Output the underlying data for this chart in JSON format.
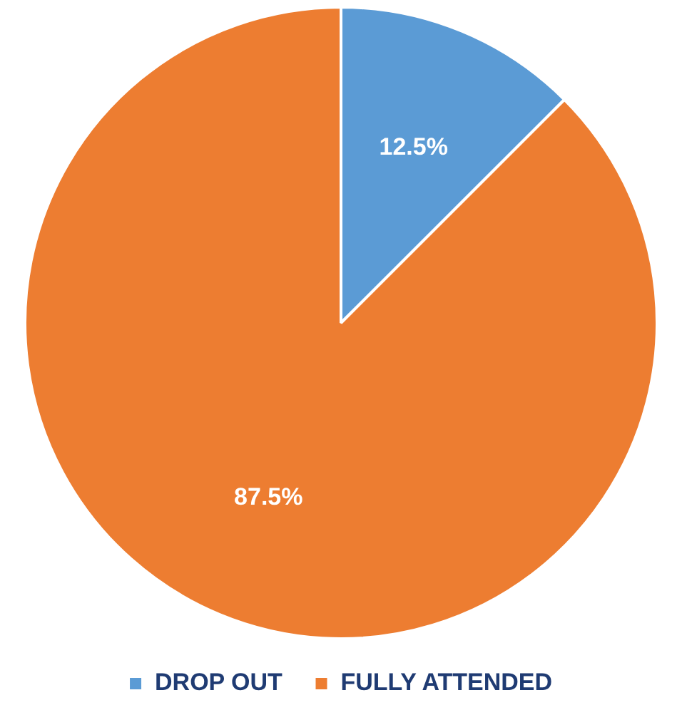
{
  "chart_data": {
    "type": "pie",
    "categories": [
      "DROP OUT",
      "FULLY ATTENDED"
    ],
    "values": [
      12.5,
      87.5
    ],
    "colors": [
      "#5b9bd5",
      "#ed7d31"
    ],
    "value_labels": [
      "12.5%",
      "87.5%"
    ],
    "legend": "bottom"
  }
}
